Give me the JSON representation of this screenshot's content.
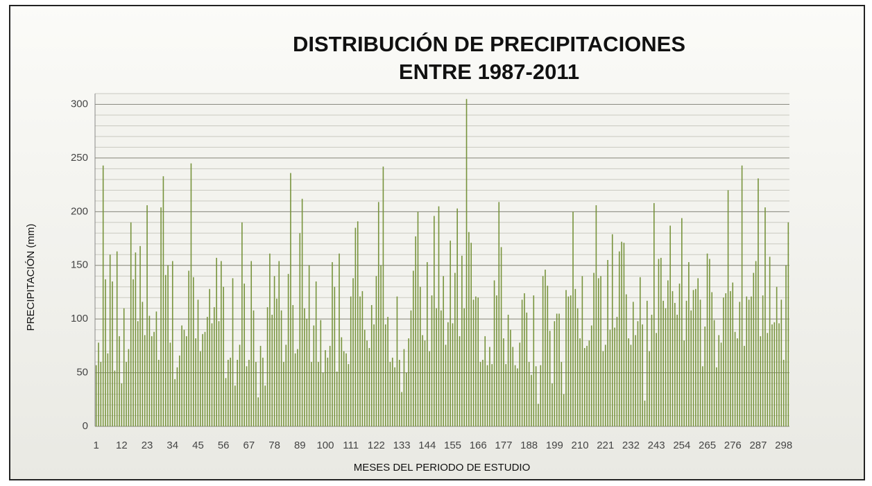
{
  "chart_data": {
    "type": "bar",
    "title": [
      "DISTRIBUCIÓN DE PRECIPITACIONES",
      "ENTRE 1987-2011"
    ],
    "x_label": "MESES DEL PERIODO DE ESTUDIO",
    "y_label": "PRECIPITACIÓN (mm)",
    "color": "#77933c",
    "ylim": [
      0,
      310
    ],
    "yticks": [
      0,
      50,
      100,
      150,
      200,
      250,
      300
    ],
    "grid": true,
    "minor_grid_step": 10,
    "categories": [
      "1",
      null,
      null,
      null,
      null,
      null,
      null,
      null,
      null,
      null,
      null,
      "12",
      null,
      null,
      null,
      null,
      null,
      null,
      null,
      null,
      null,
      null,
      "23",
      null,
      null,
      null,
      null,
      null,
      null,
      null,
      null,
      null,
      null,
      "34",
      null,
      null,
      null,
      null,
      null,
      null,
      null,
      null,
      null,
      null,
      "45",
      null,
      null,
      null,
      null,
      null,
      null,
      null,
      null,
      null,
      null,
      "56",
      null,
      null,
      null,
      null,
      null,
      null,
      null,
      null,
      null,
      null,
      "67",
      null,
      null,
      null,
      null,
      null,
      null,
      null,
      null,
      null,
      null,
      "78",
      null,
      null,
      null,
      null,
      null,
      null,
      null,
      null,
      null,
      null,
      "89",
      null,
      null,
      null,
      null,
      null,
      null,
      null,
      null,
      null,
      null,
      "100",
      null,
      null,
      null,
      null,
      null,
      null,
      null,
      null,
      null,
      null,
      "111",
      null,
      null,
      null,
      null,
      null,
      null,
      null,
      null,
      null,
      null,
      "122",
      null,
      null,
      null,
      null,
      null,
      null,
      null,
      null,
      null,
      null,
      "133",
      null,
      null,
      null,
      null,
      null,
      null,
      null,
      null,
      null,
      null,
      "144",
      null,
      null,
      null,
      null,
      null,
      null,
      null,
      null,
      null,
      null,
      "155",
      null,
      null,
      null,
      null,
      null,
      null,
      null,
      null,
      null,
      null,
      "166",
      null,
      null,
      null,
      null,
      null,
      null,
      null,
      null,
      null,
      null,
      "177",
      null,
      null,
      null,
      null,
      null,
      null,
      null,
      null,
      null,
      null,
      "188",
      null,
      null,
      null,
      null,
      null,
      null,
      null,
      null,
      null,
      null,
      "199",
      null,
      null,
      null,
      null,
      null,
      null,
      null,
      null,
      null,
      null,
      "210",
      null,
      null,
      null,
      null,
      null,
      null,
      null,
      null,
      null,
      null,
      "221",
      null,
      null,
      null,
      null,
      null,
      null,
      null,
      null,
      null,
      null,
      "232",
      null,
      null,
      null,
      null,
      null,
      null,
      null,
      null,
      null,
      null,
      "243",
      null,
      null,
      null,
      null,
      null,
      null,
      null,
      null,
      null,
      null,
      "254",
      null,
      null,
      null,
      null,
      null,
      null,
      null,
      null,
      null,
      null,
      "265",
      null,
      null,
      null,
      null,
      null,
      null,
      null,
      null,
      null,
      null,
      "276",
      null,
      null,
      null,
      null,
      null,
      null,
      null,
      null,
      null,
      null,
      "287",
      null,
      null,
      null,
      null,
      null,
      null,
      null,
      null,
      null,
      null,
      "298",
      null,
      null
    ],
    "values": [
      57,
      78,
      60,
      243,
      137,
      68,
      160,
      135,
      52,
      163,
      84,
      40,
      110,
      60,
      72,
      190,
      137,
      162,
      98,
      168,
      116,
      85,
      206,
      103,
      84,
      88,
      107,
      62,
      204,
      233,
      141,
      150,
      78,
      154,
      44,
      55,
      66,
      94,
      90,
      84,
      145,
      245,
      139,
      82,
      118,
      70,
      86,
      88,
      102,
      128,
      96,
      111,
      157,
      98,
      154,
      130,
      45,
      62,
      64,
      138,
      38,
      62,
      76,
      190,
      133,
      56,
      62,
      154,
      108,
      60,
      27,
      75,
      64,
      38,
      111,
      161,
      104,
      140,
      119,
      154,
      108,
      60,
      76,
      142,
      236,
      113,
      68,
      72,
      180,
      212,
      110,
      100,
      150,
      60,
      94,
      135,
      60,
      99,
      50,
      71,
      64,
      75,
      153,
      130,
      51,
      161,
      83,
      70,
      68,
      58,
      121,
      138,
      185,
      191,
      121,
      126,
      90,
      80,
      73,
      113,
      95,
      140,
      209,
      150,
      242,
      95,
      102,
      60,
      64,
      55,
      121,
      62,
      32,
      72,
      50,
      82,
      108,
      145,
      177,
      200,
      130,
      85,
      80,
      153,
      70,
      122,
      196,
      110,
      205,
      108,
      140,
      76,
      97,
      173,
      96,
      143,
      203,
      84,
      159,
      110,
      305,
      181,
      171,
      118,
      121,
      120,
      60,
      62,
      84,
      57,
      74,
      58,
      136,
      122,
      209,
      167,
      82,
      58,
      104,
      90,
      74,
      57,
      54,
      78,
      118,
      124,
      106,
      60,
      48,
      122,
      56,
      21,
      57,
      140,
      146,
      131,
      89,
      40,
      98,
      105,
      105,
      60,
      30,
      127,
      121,
      122,
      200,
      128,
      110,
      82,
      140,
      73,
      75,
      80,
      94,
      143,
      206,
      138,
      140,
      70,
      76,
      155,
      90,
      179,
      92,
      102,
      163,
      172,
      171,
      123,
      82,
      76,
      116,
      85,
      98,
      139,
      95,
      24,
      117,
      70,
      104,
      208,
      87,
      156,
      157,
      117,
      110,
      136,
      187,
      126,
      115,
      104,
      133,
      194,
      80,
      117,
      153,
      108,
      127,
      128,
      138,
      118,
      56,
      93,
      161,
      156,
      125,
      99,
      55,
      85,
      78,
      120,
      124,
      220,
      126,
      134,
      88,
      82,
      116,
      243,
      75,
      121,
      118,
      121,
      143,
      154,
      231,
      84,
      122,
      204,
      87,
      158,
      95,
      97,
      130,
      96,
      118,
      62,
      150,
      190
    ]
  }
}
